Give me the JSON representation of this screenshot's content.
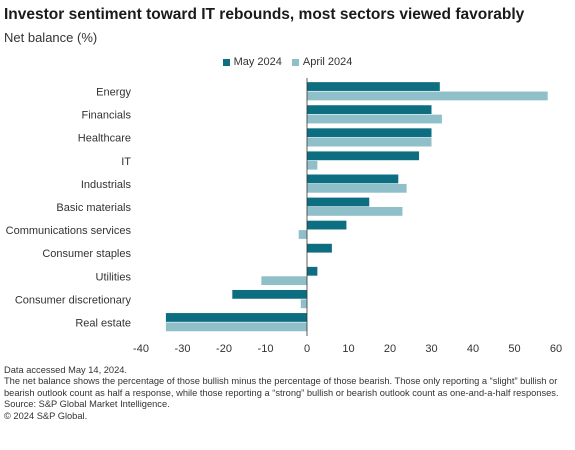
{
  "chart_data": {
    "type": "bar",
    "orientation": "horizontal",
    "title": "Investor sentiment toward IT rebounds, most sectors viewed favorably",
    "subtitle": "Net balance (%)",
    "categories": [
      "Energy",
      "Financials",
      "Healthcare",
      "IT",
      "Industrials",
      "Basic materials",
      "Communications services",
      "Consumer staples",
      "Utilities",
      "Consumer discretionary",
      "Real estate"
    ],
    "series": [
      {
        "name": "May 2024",
        "color": "#0d6e82",
        "values": [
          32,
          30,
          30,
          27,
          22,
          15,
          9.5,
          6,
          2.5,
          -18,
          -34
        ]
      },
      {
        "name": "April 2024",
        "color": "#8fc0c9",
        "values": [
          58,
          32.5,
          30,
          2.5,
          24,
          23,
          -2,
          0,
          -11,
          -1.5,
          -34
        ]
      }
    ],
    "xlim": [
      -40,
      60
    ],
    "xticks": [
      -40,
      -30,
      -20,
      -10,
      0,
      10,
      20,
      30,
      40,
      50,
      60
    ],
    "legend_position": "top-center",
    "grid": false
  },
  "footnotes": {
    "accessed": "Data accessed May 14, 2024.",
    "definition": "The net balance shows the percentage of those bullish minus the percentage of those bearish. Those only reporting a “slight” bullish or bearish outlook count as half a response, while those reporting a “strong” bullish or bearish outlook count as one-and-a-half responses.",
    "source": "Source: S&P Global Market Intelligence.",
    "copyright": "© 2024 S&P Global."
  }
}
